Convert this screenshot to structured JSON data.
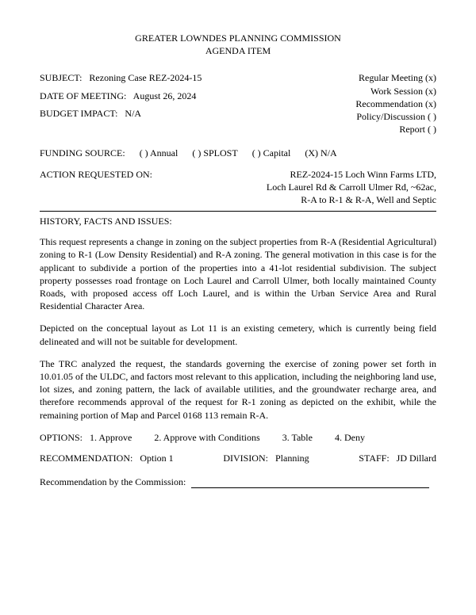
{
  "title": {
    "line1": "GREATER LOWNDES PLANNING COMMISSION",
    "line2": "AGENDA ITEM"
  },
  "header": {
    "subject_label": "SUBJECT:",
    "subject_value": "Rezoning Case REZ-2024-15",
    "date_label": "DATE OF MEETING:",
    "date_value": "August 26, 2024",
    "budget_label": "BUDGET IMPACT:",
    "budget_value": "N/A",
    "meeting_types": {
      "regular": "Regular Meeting (x)",
      "work": "Work Session (x)",
      "recommendation": "Recommendation (x)",
      "policy": "Policy/Discussion ( )",
      "report": "Report ( )"
    }
  },
  "funding": {
    "label": "FUNDING SOURCE:",
    "annual": "( )  Annual",
    "splost": "( ) SPLOST",
    "capital": "( )  Capital",
    "na": "(X)  N/A"
  },
  "action": {
    "label": "ACTION REQUESTED ON:",
    "line1": "REZ-2024-15 Loch Winn Farms LTD,",
    "line2": "Loch Laurel Rd & Carroll Ulmer Rd, ~62ac,",
    "line3": "R-A to R-1 & R-A, Well and Septic"
  },
  "history": {
    "heading": "HISTORY, FACTS AND ISSUES:",
    "p1": "This request represents a change in zoning on the subject properties from R-A (Residential Agricultural) zoning to R-1 (Low Density Residential) and R-A zoning.  The general motivation in this case is for the applicant to subdivide a portion of the properties into a 41-lot residential subdivision. The subject property possesses road frontage on Loch Laurel and Carroll Ulmer, both locally maintained County Roads, with proposed access off Loch Laurel, and is within the Urban Service Area and Rural Residential Character Area.",
    "p2": "Depicted on the conceptual layout as Lot 11 is an existing cemetery, which is currently being field delineated and will not be suitable for development.",
    "p3": "The TRC analyzed the request, the standards governing the exercise of zoning power set forth in 10.01.05 of the ULDC, and factors most relevant to this application, including the neighboring land use, lot sizes, and zoning pattern, the lack of available utilities, and the groundwater recharge area, and therefore recommends approval of the request for R-1 zoning as depicted on the exhibit, while the remaining portion of Map and Parcel 0168 113 remain R-A."
  },
  "options": {
    "label": "OPTIONS:",
    "o1": "1. Approve",
    "o2": "2.  Approve with Conditions",
    "o3": "3.  Table",
    "o4": "4.  Deny"
  },
  "footer": {
    "rec_label": "RECOMMENDATION:",
    "rec_value": "Option 1",
    "div_label": "DIVISION:",
    "div_value": "Planning",
    "staff_label": "STAFF:",
    "staff_value": "JD Dillard",
    "commission_label": "Recommendation by the Commission:"
  }
}
